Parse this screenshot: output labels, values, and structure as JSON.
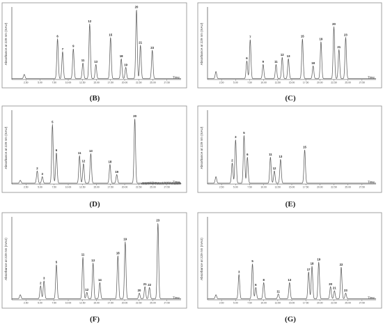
{
  "chart_data": [
    {
      "type": "line",
      "panel": "B",
      "caption": "(B)",
      "ylabel": "Absorbance at 229 nm (mAU)",
      "xlabel": "Time",
      "xlim": [
        0,
        30
      ],
      "x_ticks": [
        "2.50",
        "5.00",
        "7.50",
        "10.00",
        "12.50",
        "15.00",
        "17.50",
        "20.00",
        "22.50",
        "25.00",
        "27.50"
      ],
      "peaks": [
        {
          "label": "",
          "t": 2.2,
          "h": 0.06
        },
        {
          "label": "6",
          "t": 8.1,
          "h": 0.56
        },
        {
          "label": "7",
          "t": 9.0,
          "h": 0.38
        },
        {
          "label": "9",
          "t": 10.9,
          "h": 0.42
        },
        {
          "label": "11",
          "t": 12.6,
          "h": 0.22
        },
        {
          "label": "12",
          "t": 13.8,
          "h": 0.77
        },
        {
          "label": "13",
          "t": 14.9,
          "h": 0.2
        },
        {
          "label": "15",
          "t": 17.5,
          "h": 0.58
        },
        {
          "label": "18",
          "t": 19.4,
          "h": 0.28
        },
        {
          "label": "19",
          "t": 20.2,
          "h": 0.16
        },
        {
          "label": "20",
          "t": 22.1,
          "h": 0.97
        },
        {
          "label": "21",
          "t": 22.8,
          "h": 0.47
        },
        {
          "label": "23",
          "t": 24.9,
          "h": 0.4
        }
      ]
    },
    {
      "type": "line",
      "panel": "C",
      "caption": "(C)",
      "ylabel": "Absorbance at 229 nm (mAU)",
      "xlabel": "Time",
      "xlim": [
        0,
        30
      ],
      "x_ticks": [
        "2.50",
        "5.00",
        "7.50",
        "10.00",
        "12.50",
        "15.00",
        "17.50",
        "20.00",
        "22.50",
        "25.00",
        "27.50"
      ],
      "peaks": [
        {
          "label": "",
          "t": 1.5,
          "h": 0.1
        },
        {
          "label": "6",
          "t": 7.0,
          "h": 0.25
        },
        {
          "label": "7",
          "t": 7.6,
          "h": 0.55
        },
        {
          "label": "9",
          "t": 9.9,
          "h": 0.2
        },
        {
          "label": "11",
          "t": 12.2,
          "h": 0.2
        },
        {
          "label": "12",
          "t": 13.3,
          "h": 0.3
        },
        {
          "label": "13",
          "t": 14.4,
          "h": 0.28
        },
        {
          "label": "15",
          "t": 16.9,
          "h": 0.56
        },
        {
          "label": "18",
          "t": 18.8,
          "h": 0.18
        },
        {
          "label": "19",
          "t": 20.2,
          "h": 0.52
        },
        {
          "label": "20",
          "t": 22.5,
          "h": 0.73
        },
        {
          "label": "21",
          "t": 23.4,
          "h": 0.41
        },
        {
          "label": "23",
          "t": 24.6,
          "h": 0.58
        }
      ]
    },
    {
      "type": "line",
      "panel": "D",
      "caption": "(D)",
      "ylabel": "Absorbance at 229 nm (mAU)",
      "xlabel": "Time",
      "xlim": [
        0,
        30
      ],
      "x_ticks": [
        "2.50",
        "5.00",
        "7.50",
        "10.00",
        "12.50",
        "15.00",
        "17.50",
        "20.00",
        "22.50",
        "25.00",
        "27.50"
      ],
      "noisy_after": 23,
      "peaks": [
        {
          "label": "",
          "t": 1.5,
          "h": 0.04
        },
        {
          "label": "2",
          "t": 4.5,
          "h": 0.17
        },
        {
          "label": "3",
          "t": 5.4,
          "h": 0.09
        },
        {
          "label": "5",
          "t": 7.2,
          "h": 0.81
        },
        {
          "label": "6",
          "t": 7.9,
          "h": 0.42
        },
        {
          "label": "11",
          "t": 12.0,
          "h": 0.38
        },
        {
          "label": "12",
          "t": 12.7,
          "h": 0.27
        },
        {
          "label": "13",
          "t": 14.0,
          "h": 0.41
        },
        {
          "label": "18",
          "t": 17.4,
          "h": 0.26
        },
        {
          "label": "19",
          "t": 18.6,
          "h": 0.12
        },
        {
          "label": "20",
          "t": 21.8,
          "h": 0.89
        }
      ]
    },
    {
      "type": "line",
      "panel": "E",
      "caption": "(E)",
      "ylabel": "Absorbance at 229 nm (mAU)",
      "xlabel": "Time",
      "xlim": [
        0,
        30
      ],
      "x_ticks": [
        "2.50",
        "5.00",
        "7.50",
        "10.00",
        "12.50",
        "15.00",
        "17.50",
        "20.00",
        "22.50",
        "25.00",
        "27.50"
      ],
      "peaks": [
        {
          "label": "",
          "t": 1.5,
          "h": 0.09
        },
        {
          "label": "2",
          "t": 4.4,
          "h": 0.28
        },
        {
          "label": "3",
          "t": 5.0,
          "h": 0.6
        },
        {
          "label": "5",
          "t": 6.5,
          "h": 0.66
        },
        {
          "label": "6",
          "t": 7.1,
          "h": 0.36
        },
        {
          "label": "11",
          "t": 11.2,
          "h": 0.36
        },
        {
          "label": "12",
          "t": 11.9,
          "h": 0.17
        },
        {
          "label": "13",
          "t": 13.0,
          "h": 0.33
        },
        {
          "label": "15",
          "t": 17.3,
          "h": 0.46
        }
      ]
    },
    {
      "type": "line",
      "panel": "F",
      "caption": "(F)",
      "ylabel": "Absorbance at 229 nm (mAU)",
      "xlabel": "Time",
      "xlim": [
        0,
        30
      ],
      "x_ticks": [
        "2.50",
        "5.00",
        "7.50",
        "10.00",
        "12.50",
        "15.00",
        "17.50",
        "20.00",
        "22.50",
        "25.00",
        "27.50"
      ],
      "peaks": [
        {
          "label": "",
          "t": 1.5,
          "h": 0.05
        },
        {
          "label": "2",
          "t": 5.1,
          "h": 0.16
        },
        {
          "label": "3",
          "t": 5.7,
          "h": 0.22
        },
        {
          "label": "5",
          "t": 7.9,
          "h": 0.42
        },
        {
          "label": "11",
          "t": 12.6,
          "h": 0.51
        },
        {
          "label": "12",
          "t": 13.3,
          "h": 0.08
        },
        {
          "label": "13",
          "t": 14.4,
          "h": 0.44
        },
        {
          "label": "14",
          "t": 15.6,
          "h": 0.2
        },
        {
          "label": "18",
          "t": 18.8,
          "h": 0.53
        },
        {
          "label": "19",
          "t": 20.1,
          "h": 0.7
        },
        {
          "label": "20",
          "t": 22.6,
          "h": 0.07
        },
        {
          "label": "21",
          "t": 23.6,
          "h": 0.15
        },
        {
          "label": "22",
          "t": 24.4,
          "h": 0.14
        },
        {
          "label": "23",
          "t": 25.9,
          "h": 0.93
        }
      ]
    },
    {
      "type": "line",
      "panel": "G",
      "caption": "(G)",
      "ylabel": "Absorbance at 229 nm (mAU)",
      "xlabel": "Time",
      "xlim": [
        0,
        30
      ],
      "x_ticks": [
        "2.50",
        "5.00",
        "7.50",
        "10.00",
        "12.50",
        "15.00",
        "17.50",
        "20.00",
        "22.50",
        "25.00",
        "27.50"
      ],
      "peaks": [
        {
          "label": "",
          "t": 1.5,
          "h": 0.05
        },
        {
          "label": "3",
          "t": 5.6,
          "h": 0.3
        },
        {
          "label": "5",
          "t": 8.0,
          "h": 0.43
        },
        {
          "label": "6",
          "t": 8.6,
          "h": 0.14
        },
        {
          "label": "8",
          "t": 10.0,
          "h": 0.2
        },
        {
          "label": "11",
          "t": 12.6,
          "h": 0.06
        },
        {
          "label": "13",
          "t": 14.6,
          "h": 0.2
        },
        {
          "label": "17",
          "t": 18.0,
          "h": 0.33
        },
        {
          "label": "18",
          "t": 18.6,
          "h": 0.4
        },
        {
          "label": "19",
          "t": 19.8,
          "h": 0.45
        },
        {
          "label": "20",
          "t": 21.9,
          "h": 0.15
        },
        {
          "label": "21",
          "t": 22.6,
          "h": 0.1
        },
        {
          "label": "22",
          "t": 23.8,
          "h": 0.39
        },
        {
          "label": "23",
          "t": 24.6,
          "h": 0.07
        }
      ]
    }
  ]
}
